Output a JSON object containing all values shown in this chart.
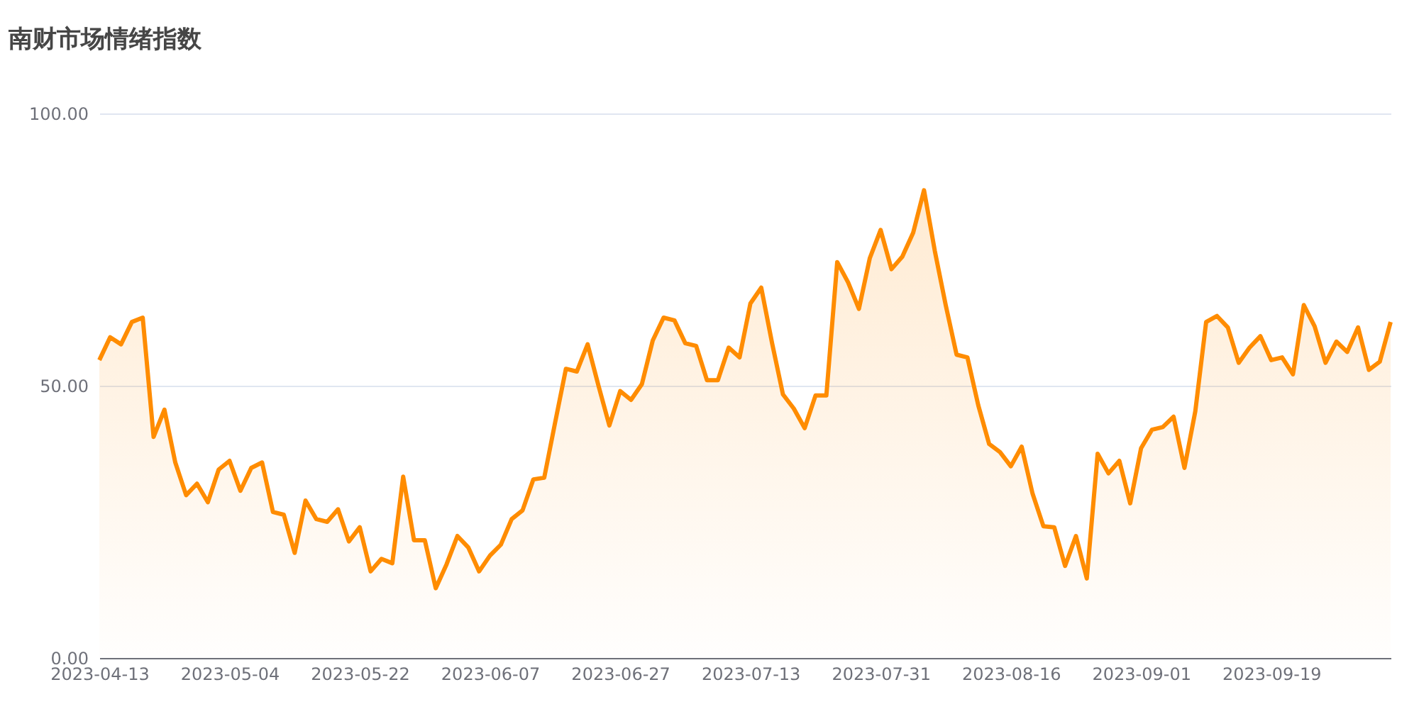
{
  "chart_data": {
    "type": "area",
    "title": "南财市场情绪指数",
    "categories": [
      "2023-04-13",
      null,
      null,
      null,
      null,
      null,
      null,
      null,
      null,
      null,
      null,
      null,
      "2023-05-04",
      null,
      null,
      null,
      null,
      null,
      null,
      null,
      null,
      null,
      null,
      null,
      "2023-05-22",
      null,
      null,
      null,
      null,
      null,
      null,
      null,
      null,
      null,
      null,
      null,
      "2023-06-07",
      null,
      null,
      null,
      null,
      null,
      null,
      null,
      null,
      null,
      null,
      null,
      "2023-06-27",
      null,
      null,
      null,
      null,
      null,
      null,
      null,
      null,
      null,
      null,
      null,
      "2023-07-13",
      null,
      null,
      null,
      null,
      null,
      null,
      null,
      null,
      null,
      null,
      null,
      "2023-07-31",
      null,
      null,
      null,
      null,
      null,
      null,
      null,
      null,
      null,
      null,
      null,
      "2023-08-16",
      null,
      null,
      null,
      null,
      null,
      null,
      null,
      null,
      null,
      null,
      null,
      "2023-09-01",
      null,
      null,
      null,
      null,
      null,
      null,
      null,
      null,
      null,
      null,
      null,
      "2023-09-19",
      null,
      null,
      null,
      null,
      null,
      null,
      null,
      null,
      null,
      null,
      null
    ],
    "series": [
      {
        "color": "#ff8c00",
        "values": [
          54.7,
          58.9,
          57.6,
          61.7,
          62.5,
          40.6,
          45.6,
          35.9,
          29.9,
          32.0,
          28.6,
          34.6,
          36.2,
          30.7,
          34.9,
          35.9,
          26.8,
          26.3,
          19.3,
          28.9,
          25.5,
          25.0,
          27.3,
          21.4,
          24.0,
          15.9,
          18.2,
          17.4,
          33.3,
          21.6,
          21.6,
          12.8,
          17.2,
          22.4,
          20.3,
          15.9,
          18.8,
          20.8,
          25.5,
          27.1,
          32.8,
          33.1,
          43.2,
          53.1,
          52.6,
          57.6,
          50.0,
          42.7,
          49.0,
          47.4,
          50.3,
          58.3,
          62.5,
          62.0,
          57.8,
          57.3,
          51.0,
          51.0,
          57.0,
          55.2,
          65.1,
          68.0,
          57.8,
          48.4,
          45.8,
          42.2,
          48.2,
          48.2,
          72.7,
          69.0,
          64.1,
          73.4,
          78.6,
          71.4,
          73.7,
          78.1,
          85.9,
          74.7,
          64.8,
          55.7,
          55.2,
          46.4,
          39.3,
          37.8,
          35.2,
          38.8,
          30.2,
          24.2,
          24.0,
          16.9,
          22.4,
          14.6,
          37.5,
          33.9,
          36.2,
          28.4,
          38.5,
          41.9,
          42.4,
          44.3,
          34.9,
          45.3,
          61.7,
          62.8,
          60.7,
          54.2,
          57.0,
          59.1,
          54.7,
          55.2,
          52.1,
          64.8,
          60.9,
          54.2,
          58.1,
          56.2,
          60.7,
          52.9,
          54.4,
          61.7
        ]
      }
    ],
    "ylim": [
      0,
      100
    ],
    "yticks": [
      {
        "value": 0,
        "label": "0.00"
      },
      {
        "value": 50,
        "label": "50.00"
      },
      {
        "value": 100,
        "label": "100.00"
      }
    ],
    "grid": "y"
  }
}
